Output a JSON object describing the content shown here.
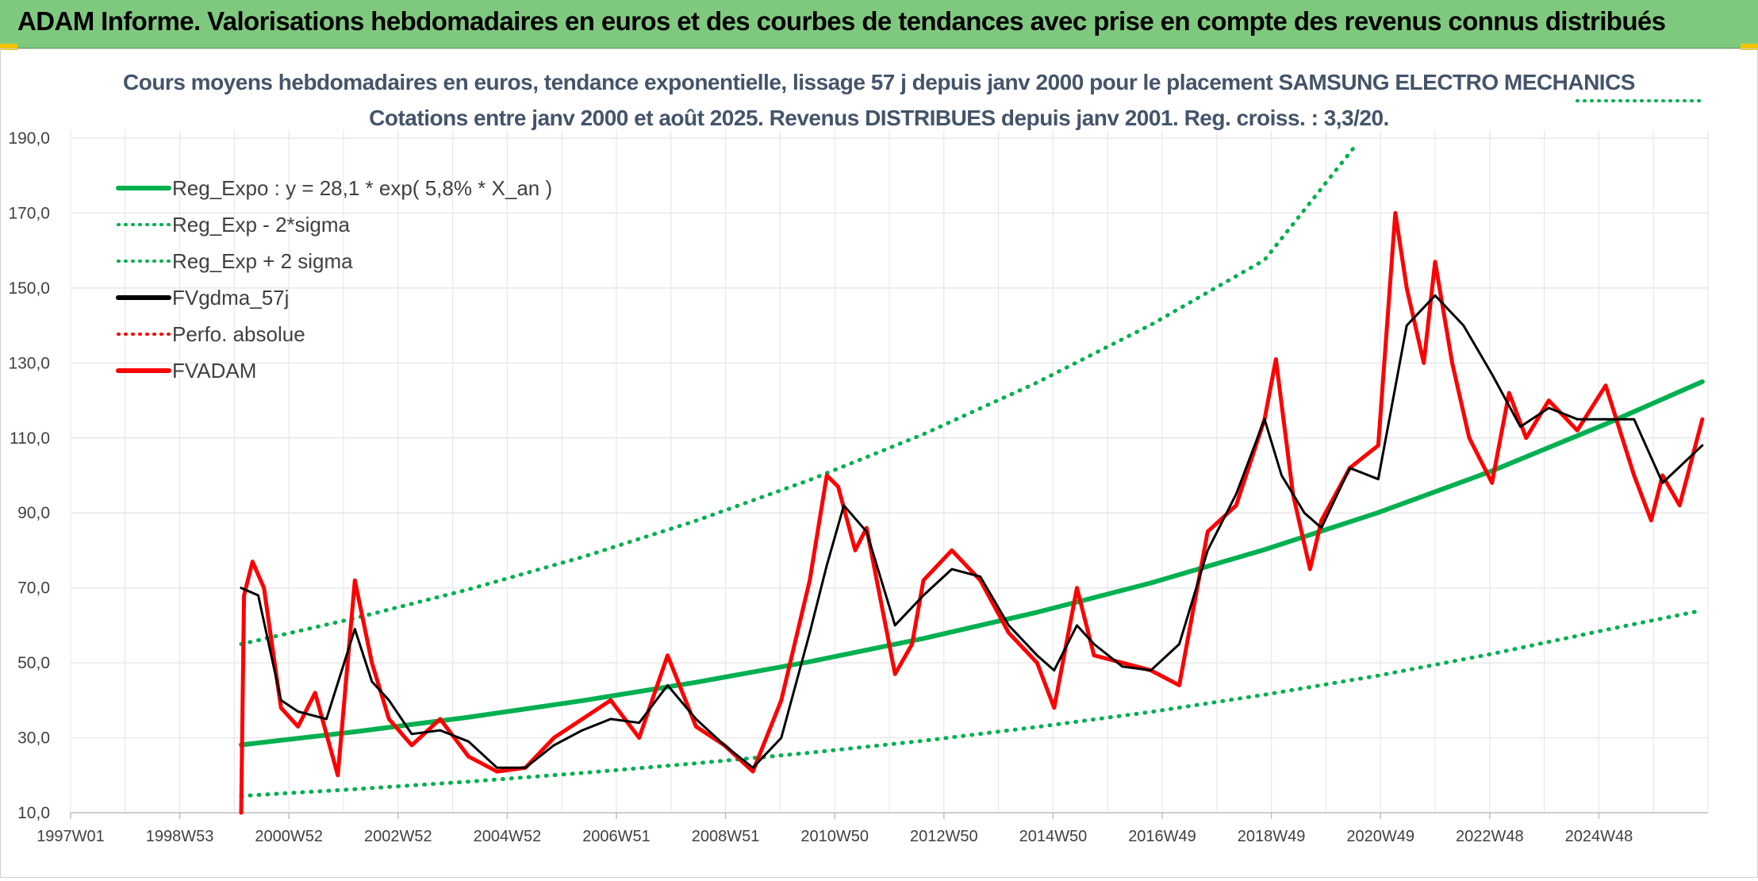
{
  "header": {
    "title": "ADAM Informe. Valorisations hebdomadaires en euros et des courbes de tendances avec prise en compte des revenus connus distribués"
  },
  "colors": {
    "banner": "#7fc97f",
    "trend": "#00b050",
    "smooth": "#000000",
    "fvadam": "#ff0000",
    "title": "#44546a"
  },
  "chart_data": {
    "type": "line",
    "title": "Cours moyens hebdomadaires en euros, tendance exponentielle, lissage 57 j depuis janv 2000 pour le placement SAMSUNG ELECTRO MECHANICS",
    "subtitle": "Cotations entre janv 2000 et août 2025. Revenus DISTRIBUES depuis janv 2001. Reg. croiss. : 3,3/20.",
    "xlabel": "",
    "ylabel": "",
    "ylim": [
      10,
      190
    ],
    "y_ticks": [
      "10,0",
      "30,0",
      "50,0",
      "70,0",
      "90,0",
      "110,0",
      "130,0",
      "150,0",
      "170,0",
      "190,0"
    ],
    "x_ticks": [
      "1997W01",
      "1998W53",
      "2000W52",
      "2002W52",
      "2004W52",
      "2006W51",
      "2008W51",
      "2010W50",
      "2012W50",
      "2014W50",
      "2016W49",
      "2018W49",
      "2020W49",
      "2022W48",
      "2024W48"
    ],
    "xlim": [
      1997.0,
      2025.8
    ],
    "grid": true,
    "legend_position": "top-left",
    "legend": [
      {
        "label": "Reg_Expo : y = 28,1 * exp( 5,8% *  X_an )",
        "color": "#00b050",
        "style": "solid"
      },
      {
        "label": "Reg_Exp - 2*sigma",
        "color": "#00b050",
        "style": "dotted"
      },
      {
        "label": "Reg_Exp + 2 sigma",
        "color": "#00b050",
        "style": "dotted"
      },
      {
        "label": "FVgdma_57j",
        "color": "#000000",
        "style": "solid"
      },
      {
        "label": "Perfo. absolue",
        "color": "#ff0000",
        "style": "dotted"
      },
      {
        "label": "FVADAM",
        "color": "#ff0000",
        "style": "solid"
      }
    ],
    "series": [
      {
        "name": "Reg_Expo : y = 28,1 * exp( 5,8% *  X_an )",
        "x": [
          2000.0,
          2002.0,
          2004.0,
          2006.0,
          2008.0,
          2010.0,
          2012.0,
          2014.0,
          2016.0,
          2018.0,
          2020.0,
          2022.0,
          2024.0,
          2025.7
        ],
        "y": [
          28.1,
          31.6,
          35.5,
          39.9,
          44.8,
          50.3,
          56.5,
          63.5,
          71.3,
          80.2,
          90.1,
          101.2,
          113.7,
          125.0
        ]
      },
      {
        "name": "Reg_Exp - 2*sigma",
        "x": [
          2000.0,
          2002.0,
          2004.0,
          2006.0,
          2008.0,
          2010.0,
          2012.0,
          2014.0,
          2016.0,
          2018.0,
          2020.0,
          2022.0,
          2024.0,
          2025.7
        ],
        "y": [
          14.5,
          16.3,
          18.3,
          20.6,
          23.2,
          26.0,
          29.2,
          32.9,
          36.9,
          41.5,
          46.6,
          52.4,
          58.8,
          64.0
        ]
      },
      {
        "name": "Reg_Exp + 2 sigma",
        "x": [
          2000.0,
          2002.0,
          2004.0,
          2006.0,
          2008.0,
          2010.0,
          2012.0,
          2014.0,
          2016.0,
          2018.0,
          2019.6
        ],
        "y": [
          55.0,
          61.9,
          69.6,
          78.2,
          87.9,
          98.8,
          111.0,
          124.8,
          140.2,
          157.5,
          188.0
        ]
      },
      {
        "name": "FVgdma_57j",
        "x": [
          2000.0,
          2000.3,
          2000.7,
          2001.0,
          2001.5,
          2002.0,
          2002.3,
          2002.6,
          2003.0,
          2003.5,
          2004.0,
          2004.5,
          2005.0,
          2005.5,
          2006.0,
          2006.5,
          2007.0,
          2007.5,
          2008.0,
          2008.5,
          2009.0,
          2009.5,
          2010.0,
          2010.3,
          2010.6,
          2011.0,
          2011.5,
          2012.0,
          2012.5,
          2013.0,
          2013.5,
          2014.0,
          2014.3,
          2014.7,
          2015.0,
          2015.5,
          2016.0,
          2016.5,
          2017.0,
          2017.5,
          2018.0,
          2018.3,
          2018.7,
          2019.0,
          2019.5,
          2020.0,
          2020.5,
          2021.0,
          2021.5,
          2022.0,
          2022.5,
          2023.0,
          2023.5,
          2024.0,
          2024.5,
          2025.0,
          2025.7
        ],
        "y": [
          70.0,
          68.0,
          40.0,
          37.0,
          35.0,
          59.0,
          45.0,
          40.0,
          31.0,
          32.0,
          29.0,
          22.0,
          22.0,
          28.0,
          32.0,
          35.0,
          34.0,
          44.0,
          35.0,
          28.0,
          22.0,
          30.0,
          58.0,
          76.0,
          92.0,
          85.0,
          60.0,
          68.0,
          75.0,
          73.0,
          60.0,
          52.0,
          48.0,
          60.0,
          55.0,
          49.0,
          48.0,
          55.0,
          80.0,
          95.0,
          115.0,
          100.0,
          90.0,
          86.0,
          102.0,
          99.0,
          140.0,
          148.0,
          140.0,
          127.0,
          113.0,
          118.0,
          115.0,
          115.0,
          115.0,
          98.0,
          108.0
        ]
      },
      {
        "name": "FVADAM",
        "x": [
          2000.0,
          2000.05,
          2000.2,
          2000.4,
          2000.7,
          2001.0,
          2001.3,
          2001.7,
          2002.0,
          2002.3,
          2002.6,
          2003.0,
          2003.5,
          2004.0,
          2004.5,
          2005.0,
          2005.5,
          2006.0,
          2006.5,
          2007.0,
          2007.5,
          2008.0,
          2008.5,
          2009.0,
          2009.5,
          2010.0,
          2010.3,
          2010.5,
          2010.8,
          2011.0,
          2011.5,
          2011.8,
          2012.0,
          2012.5,
          2013.0,
          2013.5,
          2014.0,
          2014.3,
          2014.7,
          2015.0,
          2015.5,
          2016.0,
          2016.5,
          2017.0,
          2017.5,
          2018.0,
          2018.2,
          2018.5,
          2018.8,
          2019.0,
          2019.5,
          2020.0,
          2020.3,
          2020.5,
          2020.8,
          2021.0,
          2021.3,
          2021.6,
          2022.0,
          2022.3,
          2022.6,
          2023.0,
          2023.5,
          2024.0,
          2024.5,
          2024.8,
          2025.0,
          2025.3,
          2025.7
        ],
        "y": [
          10.0,
          68.0,
          77.0,
          70.0,
          38.0,
          33.0,
          42.0,
          20.0,
          72.0,
          50.0,
          35.0,
          28.0,
          35.0,
          25.0,
          21.0,
          22.0,
          30.0,
          35.0,
          40.0,
          30.0,
          52.0,
          33.0,
          28.0,
          21.0,
          40.0,
          72.0,
          100.0,
          97.0,
          80.0,
          86.0,
          47.0,
          55.0,
          72.0,
          80.0,
          72.0,
          58.0,
          50.0,
          38.0,
          70.0,
          52.0,
          50.0,
          48.0,
          44.0,
          85.0,
          92.0,
          115.0,
          131.0,
          95.0,
          75.0,
          88.0,
          102.0,
          108.0,
          170.0,
          150.0,
          130.0,
          157.0,
          130.0,
          110.0,
          98.0,
          122.0,
          110.0,
          120.0,
          112.0,
          124.0,
          100.0,
          88.0,
          100.0,
          92.0,
          115.0
        ]
      }
    ]
  }
}
